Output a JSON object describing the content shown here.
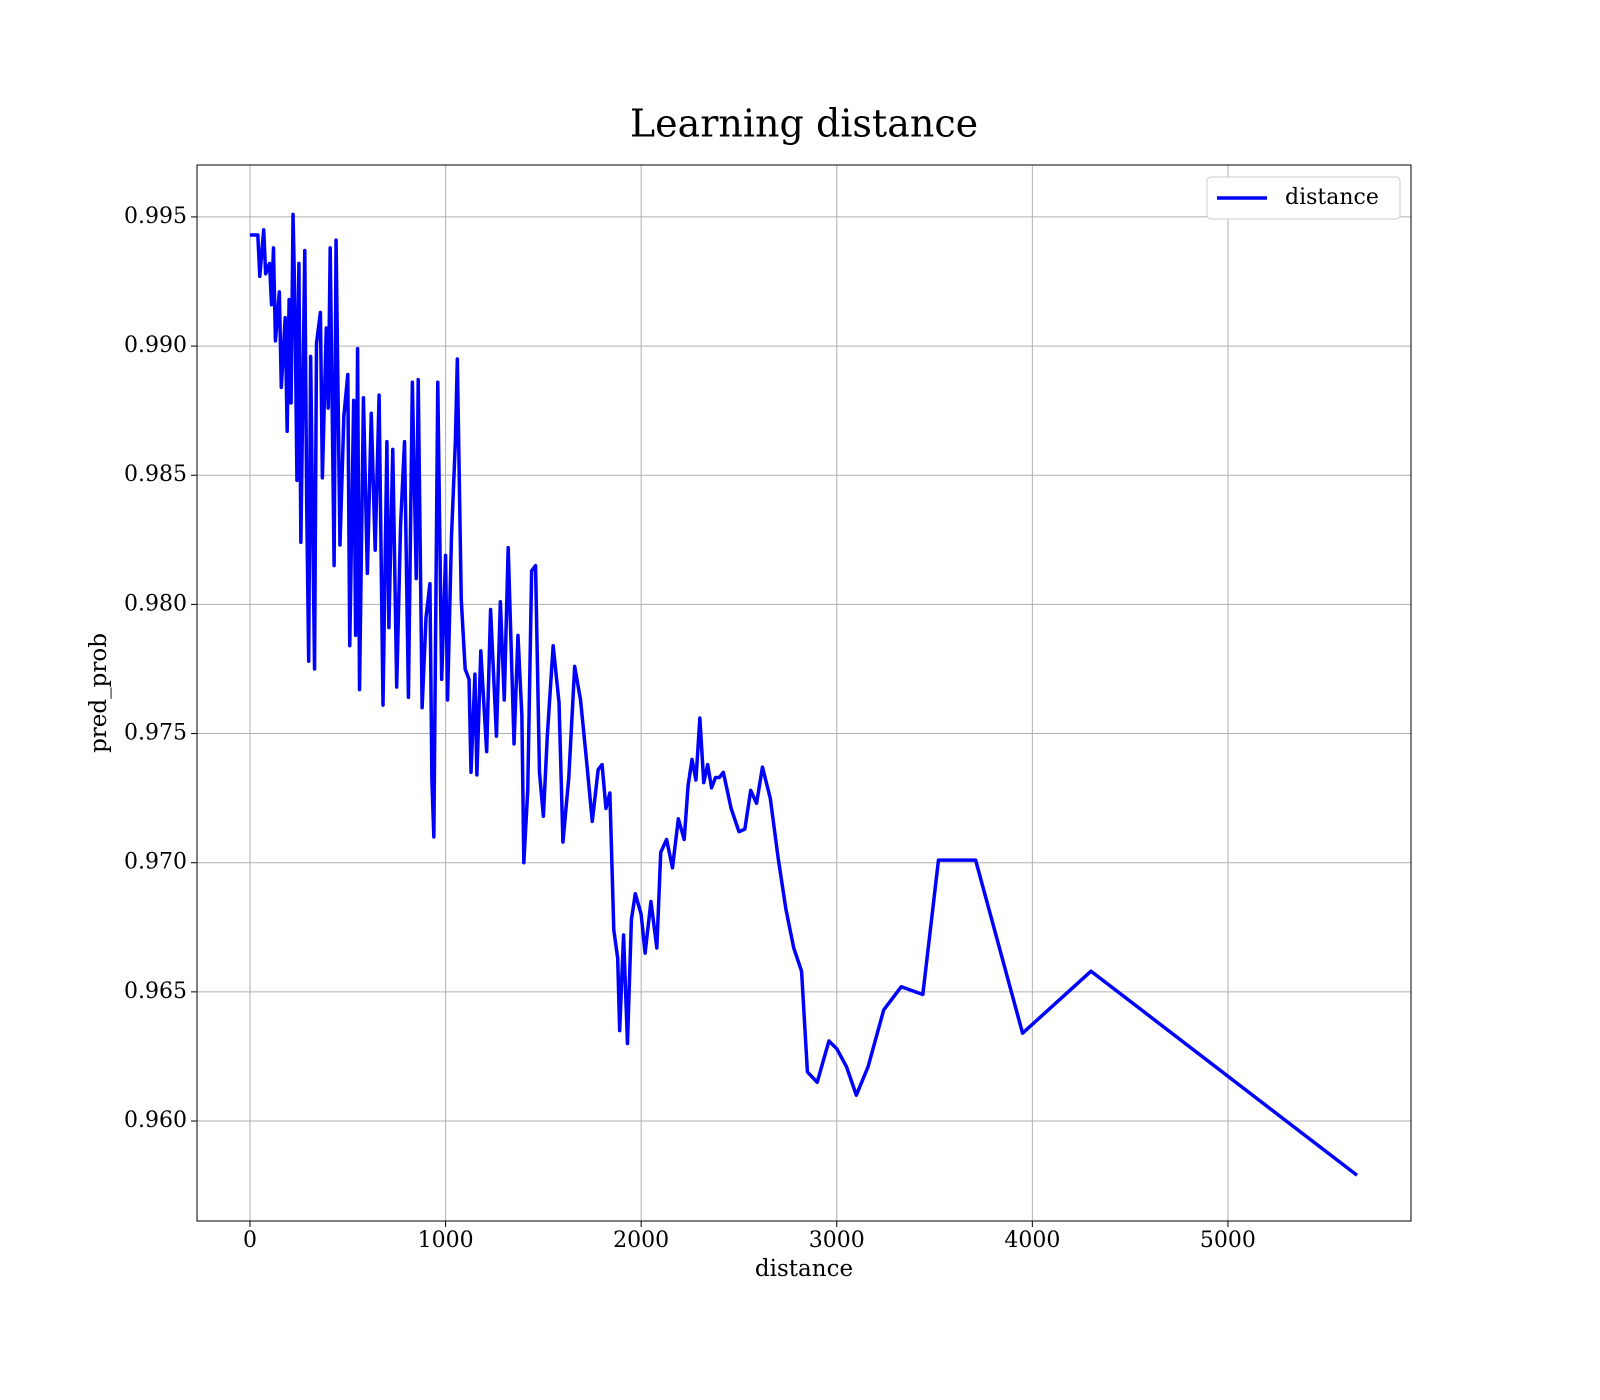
{
  "chart_data": {
    "type": "line",
    "title": "Learning distance",
    "xlabel": "distance",
    "ylabel": "pred_prob",
    "x": [
      0,
      40,
      50,
      70,
      80,
      100,
      110,
      120,
      130,
      150,
      160,
      180,
      190,
      200,
      210,
      220,
      230,
      240,
      250,
      260,
      280,
      290,
      300,
      310,
      330,
      340,
      360,
      370,
      390,
      400,
      410,
      430,
      440,
      460,
      480,
      500,
      510,
      530,
      540,
      550,
      560,
      580,
      600,
      620,
      640,
      660,
      680,
      700,
      710,
      730,
      750,
      770,
      790,
      810,
      830,
      850,
      860,
      880,
      900,
      920,
      930,
      940,
      960,
      980,
      1000,
      1010,
      1030,
      1050,
      1060,
      1080,
      1100,
      1120,
      1130,
      1150,
      1160,
      1180,
      1210,
      1230,
      1260,
      1280,
      1300,
      1320,
      1350,
      1370,
      1390,
      1400,
      1420,
      1440,
      1460,
      1480,
      1500,
      1520,
      1550,
      1580,
      1600,
      1630,
      1660,
      1690,
      1720,
      1750,
      1780,
      1800,
      1820,
      1840,
      1860,
      1880,
      1890,
      1910,
      1930,
      1950,
      1970,
      2000,
      2020,
      2050,
      2080,
      2100,
      2130,
      2160,
      2190,
      2220,
      2240,
      2260,
      2280,
      2300,
      2320,
      2340,
      2360,
      2380,
      2400,
      2420,
      2460,
      2500,
      2530,
      2560,
      2590,
      2620,
      2660,
      2700,
      2740,
      2780,
      2820,
      2850,
      2900,
      2960,
      3000,
      3050,
      3100,
      3160,
      3240,
      3330,
      3440,
      3520,
      3710,
      3950,
      4300,
      5660
    ],
    "series": [
      {
        "name": "distance",
        "color": "#0000ff",
        "values": [
          0.9943,
          0.9943,
          0.9927,
          0.9945,
          0.9928,
          0.9932,
          0.9916,
          0.9938,
          0.9902,
          0.9921,
          0.9884,
          0.9911,
          0.9867,
          0.9918,
          0.9878,
          0.9951,
          0.9915,
          0.9848,
          0.9932,
          0.9824,
          0.9937,
          0.9838,
          0.9778,
          0.9896,
          0.9775,
          0.9901,
          0.9913,
          0.9849,
          0.9907,
          0.9876,
          0.9938,
          0.9815,
          0.9941,
          0.9823,
          0.9873,
          0.9889,
          0.9784,
          0.9879,
          0.9788,
          0.9899,
          0.9767,
          0.988,
          0.9812,
          0.9874,
          0.9821,
          0.9881,
          0.9761,
          0.9863,
          0.9791,
          0.986,
          0.9768,
          0.9831,
          0.9863,
          0.9764,
          0.9886,
          0.981,
          0.9887,
          0.976,
          0.9795,
          0.9808,
          0.9732,
          0.971,
          0.9886,
          0.9771,
          0.9819,
          0.9763,
          0.9826,
          0.9863,
          0.9895,
          0.9802,
          0.9775,
          0.9771,
          0.9735,
          0.9773,
          0.9734,
          0.9782,
          0.9743,
          0.9798,
          0.9749,
          0.9801,
          0.9763,
          0.9822,
          0.9746,
          0.9788,
          0.9757,
          0.97,
          0.9728,
          0.9813,
          0.9815,
          0.9735,
          0.9718,
          0.9749,
          0.9784,
          0.9762,
          0.9708,
          0.9733,
          0.9776,
          0.9763,
          0.974,
          0.9716,
          0.9736,
          0.9738,
          0.9721,
          0.9727,
          0.9674,
          0.9663,
          0.9635,
          0.9672,
          0.963,
          0.9678,
          0.9688,
          0.968,
          0.9665,
          0.9685,
          0.9667,
          0.9704,
          0.9709,
          0.9698,
          0.9717,
          0.9709,
          0.973,
          0.974,
          0.9732,
          0.9756,
          0.9731,
          0.9738,
          0.9729,
          0.9733,
          0.9733,
          0.9735,
          0.9721,
          0.9712,
          0.9713,
          0.9728,
          0.9723,
          0.9737,
          0.9725,
          0.9702,
          0.9682,
          0.9667,
          0.9658,
          0.9619,
          0.9615,
          0.9631,
          0.9628,
          0.9621,
          0.961,
          0.9621,
          0.9643,
          0.9652,
          0.9649,
          0.9701,
          0.9701,
          0.9634,
          0.9658,
          0.9579
        ]
      }
    ],
    "xlim": [
      -271,
      5936
    ],
    "xticks": [
      0,
      1000,
      2000,
      3000,
      4000,
      5000
    ],
    "ylim": [
      0.95613,
      0.99701
    ],
    "yticks": [
      {
        "value": 0.96,
        "label": "0.960"
      },
      0.965,
      {
        "value": 0.97,
        "label": "0.970"
      },
      0.975,
      {
        "value": 0.98,
        "label": "0.980"
      },
      0.985,
      {
        "value": 0.99,
        "label": "0.990"
      },
      0.995
    ],
    "grid": true,
    "legend": "upper right"
  }
}
